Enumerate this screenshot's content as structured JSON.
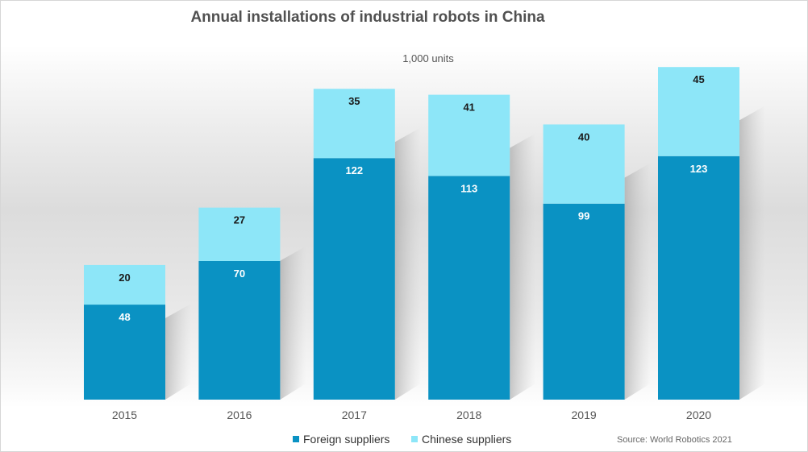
{
  "chart_data": {
    "type": "bar",
    "stacked": true,
    "title": "Annual installations of industrial robots in China",
    "unit_label": "1,000 units",
    "categories": [
      "2015",
      "2016",
      "2017",
      "2018",
      "2019",
      "2020"
    ],
    "series": [
      {
        "name": "Foreign suppliers",
        "values": [
          48,
          70,
          122,
          113,
          99,
          123
        ],
        "color": "#0a92c3"
      },
      {
        "name": "Chinese suppliers",
        "values": [
          20,
          27,
          35,
          41,
          40,
          45
        ],
        "color": "#8de6f8"
      }
    ],
    "ylim": [
      0,
      175
    ],
    "grid": false,
    "legend_position": "bottom",
    "source": "Source: World Robotics 2021"
  }
}
